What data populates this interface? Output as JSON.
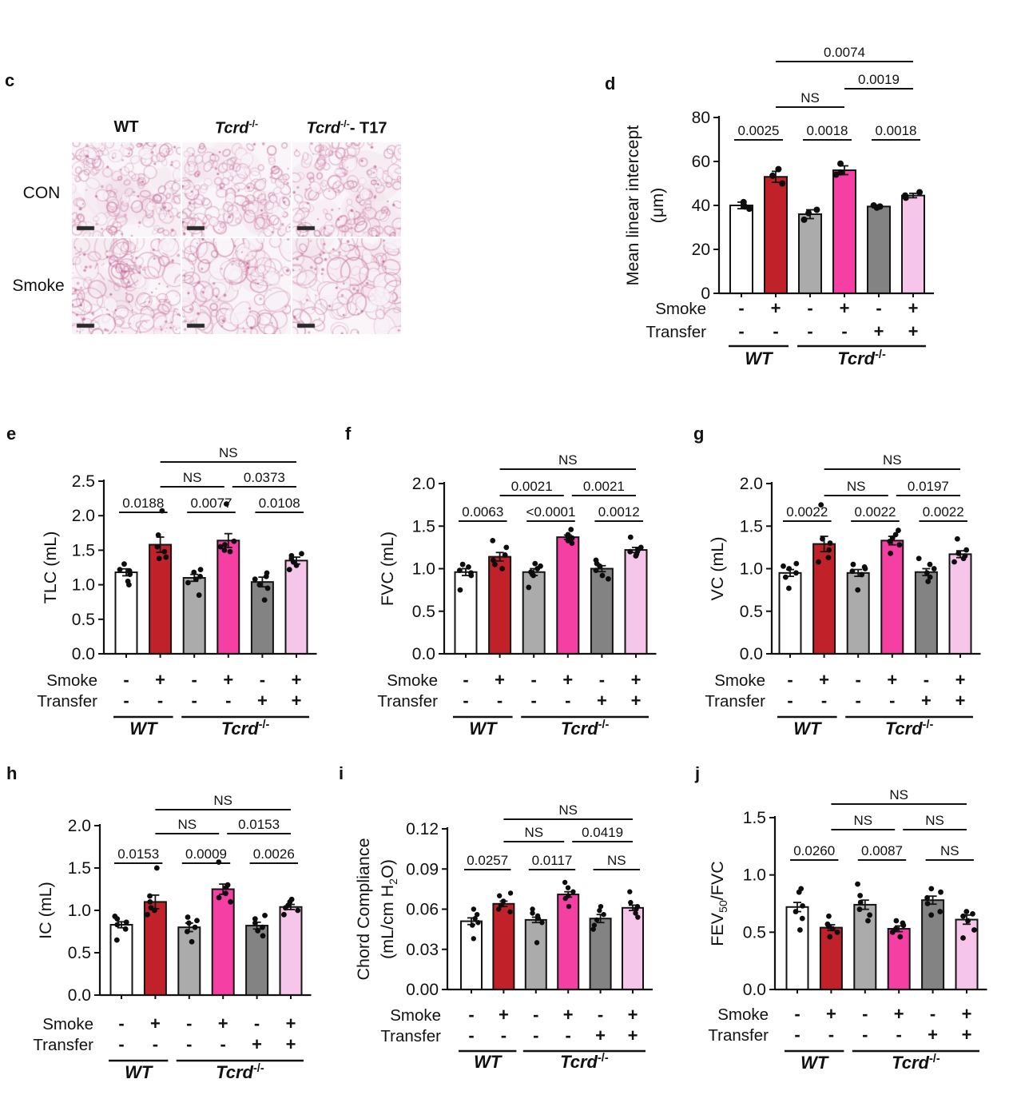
{
  "palette": {
    "white": "#ffffff",
    "red": "#c1222a",
    "lightgray": "#ababab",
    "pink": "#f63fa3",
    "darkgray": "#838383",
    "lightpink": "#f5c5ea",
    "axis": "#111111",
    "dot": "#0d0d0d",
    "tissue_pink": "#ce80a6"
  },
  "panel_c": {
    "letter": "c",
    "col_headers": [
      [
        "WT"
      ],
      [
        {
          "i": "Tcrd"
        },
        {
          "sup": "-/-"
        }
      ],
      [
        {
          "i": "Tcrd"
        },
        {
          "sup": "-/-"
        },
        "- T17"
      ]
    ],
    "row_labels": [
      "CON",
      "Smoke"
    ],
    "image_grid": {
      "rows": 2,
      "cols": 3,
      "scale_bar": "black bar, bottom-left of each image"
    }
  },
  "condition_rows": {
    "smoke_label": "Smoke",
    "transfer_label": "Transfer",
    "smoke": [
      "-",
      "+",
      "-",
      "+",
      "-",
      "+"
    ],
    "transfer": [
      "-",
      "-",
      "-",
      "-",
      "+",
      "+"
    ],
    "groups": [
      {
        "label": [
          {
            "bi": "WT"
          }
        ],
        "from": 0,
        "to": 1,
        "plain": "WT"
      },
      {
        "label": [
          {
            "bi": "Tcrd"
          },
          {
            "sup": "-/-"
          }
        ],
        "from": 2,
        "to": 5,
        "plain": "Tcrd-/-"
      }
    ]
  },
  "chart_data": [
    {
      "panel": "d",
      "type": "bar",
      "ylabel": "Mean linear intercept (μm)",
      "ylabel_lines": [
        [
          "Mean linear intercept"
        ],
        [
          "(μm)"
        ]
      ],
      "ylim": [
        0,
        80
      ],
      "yticks": [
        0,
        20,
        40,
        60,
        80
      ],
      "ytick_labels": [
        "0",
        "20",
        "40",
        "60",
        "80"
      ],
      "bar_colors": [
        "white",
        "red",
        "lightgray",
        "pink",
        "darkgray",
        "lightpink"
      ],
      "values": [
        40,
        53,
        36,
        56,
        39.5,
        44.5
      ],
      "errors": [
        1.5,
        2.5,
        2,
        2,
        0.6,
        1
      ],
      "points": [
        [
          38.5,
          39.5,
          41.5
        ],
        [
          50,
          53.5,
          56.5
        ],
        [
          33.5,
          36.5,
          38
        ],
        [
          54,
          55,
          59
        ],
        [
          39,
          39.5,
          40
        ],
        [
          43.5,
          44.5,
          46
        ]
      ],
      "significance": [
        {
          "from": 0,
          "to": 1,
          "label": "0.0025",
          "row": 0
        },
        {
          "from": 2,
          "to": 3,
          "label": "0.0018",
          "row": 0
        },
        {
          "from": 4,
          "to": 5,
          "label": "0.0018",
          "row": 0
        },
        {
          "from": 1,
          "to": 3,
          "label": "NS",
          "row": 1
        },
        {
          "from": 3,
          "to": 5,
          "label": "0.0019",
          "row": 2
        },
        {
          "from": 1,
          "to": 5,
          "label": "0.0074",
          "row": 3
        }
      ]
    },
    {
      "panel": "e",
      "type": "bar",
      "ylabel": "TLC (mL)",
      "ylabel_lines": [
        [
          "TLC (mL)"
        ]
      ],
      "ylim": [
        0,
        2.5
      ],
      "yticks": [
        0,
        0.5,
        1.0,
        1.5,
        2.0,
        2.5
      ],
      "ytick_labels": [
        "0.0",
        "0.5",
        "1.0",
        "1.5",
        "2.0",
        "2.5"
      ],
      "bar_colors": [
        "white",
        "red",
        "lightgray",
        "pink",
        "darkgray",
        "lightpink"
      ],
      "values": [
        1.18,
        1.58,
        1.1,
        1.64,
        1.04,
        1.35
      ],
      "errors": [
        0.05,
        0.11,
        0.05,
        0.1,
        0.07,
        0.05
      ],
      "points": [
        [
          1.0,
          1.05,
          1.15,
          1.2,
          1.22,
          1.3
        ],
        [
          1.38,
          1.4,
          1.48,
          1.55,
          1.72,
          2.07
        ],
        [
          0.85,
          1.03,
          1.08,
          1.12,
          1.18,
          1.22
        ],
        [
          1.48,
          1.5,
          1.55,
          1.58,
          1.63,
          2.17
        ],
        [
          0.78,
          0.95,
          1.0,
          1.08,
          1.12,
          1.17
        ],
        [
          1.22,
          1.28,
          1.33,
          1.38,
          1.42,
          1.45
        ]
      ],
      "significance": [
        {
          "from": 0,
          "to": 1,
          "label": "0.0188",
          "row": 0
        },
        {
          "from": 2,
          "to": 3,
          "label": "0.0077",
          "row": 0
        },
        {
          "from": 4,
          "to": 5,
          "label": "0.0108",
          "row": 0
        },
        {
          "from": 1,
          "to": 3,
          "label": "NS",
          "row": 1
        },
        {
          "from": 3,
          "to": 5,
          "label": "0.0373",
          "row": 1
        },
        {
          "from": 1,
          "to": 5,
          "label": "NS",
          "row": 3
        }
      ]
    },
    {
      "panel": "f",
      "type": "bar",
      "ylabel": "FVC (mL)",
      "ylabel_lines": [
        [
          "FVC (mL)"
        ]
      ],
      "ylim": [
        0,
        2.0
      ],
      "yticks": [
        0,
        0.5,
        1.0,
        1.5,
        2.0
      ],
      "ytick_labels": [
        "0.0",
        "0.5",
        "1.0",
        "1.5",
        "2.0"
      ],
      "bar_colors": [
        "white",
        "red",
        "lightgray",
        "pink",
        "darkgray",
        "lightpink"
      ],
      "values": [
        0.96,
        1.14,
        0.96,
        1.37,
        1.0,
        1.22
      ],
      "errors": [
        0.04,
        0.05,
        0.04,
        0.025,
        0.035,
        0.03
      ],
      "points": [
        [
          0.75,
          0.92,
          0.95,
          0.98,
          1.02,
          1.05
        ],
        [
          1.0,
          1.05,
          1.1,
          1.16,
          1.25,
          1.33
        ],
        [
          0.78,
          0.92,
          0.96,
          1.0,
          1.03,
          1.06
        ],
        [
          1.3,
          1.33,
          1.36,
          1.38,
          1.4,
          1.46
        ],
        [
          0.88,
          0.92,
          0.98,
          1.03,
          1.06,
          1.1
        ],
        [
          1.15,
          1.17,
          1.2,
          1.22,
          1.25,
          1.37
        ]
      ],
      "significance": [
        {
          "from": 0,
          "to": 1,
          "label": "0.0063",
          "row": 0
        },
        {
          "from": 2,
          "to": 3,
          "label": "<0.0001",
          "row": 0
        },
        {
          "from": 4,
          "to": 5,
          "label": "0.0012",
          "row": 0
        },
        {
          "from": 1,
          "to": 3,
          "label": "0.0021",
          "row": 1
        },
        {
          "from": 3,
          "to": 5,
          "label": "0.0021",
          "row": 1
        },
        {
          "from": 1,
          "to": 5,
          "label": "NS",
          "row": 3
        }
      ]
    },
    {
      "panel": "g",
      "type": "bar",
      "ylabel": "VC (mL)",
      "ylabel_lines": [
        [
          "VC (mL)"
        ]
      ],
      "ylim": [
        0,
        2.0
      ],
      "yticks": [
        0,
        0.5,
        1.0,
        1.5,
        2.0
      ],
      "ytick_labels": [
        "0.0",
        "0.5",
        "1.0",
        "1.5",
        "2.0"
      ],
      "bar_colors": [
        "white",
        "red",
        "lightgray",
        "pink",
        "darkgray",
        "lightpink"
      ],
      "values": [
        0.95,
        1.29,
        0.95,
        1.33,
        0.96,
        1.17
      ],
      "errors": [
        0.04,
        0.09,
        0.04,
        0.05,
        0.04,
        0.04
      ],
      "points": [
        [
          0.77,
          0.9,
          0.95,
          1.0,
          1.03,
          1.06
        ],
        [
          1.08,
          1.13,
          1.22,
          1.3,
          1.35,
          1.75
        ],
        [
          0.75,
          0.93,
          0.97,
          1.0,
          1.02,
          1.05
        ],
        [
          1.18,
          1.28,
          1.32,
          1.36,
          1.4,
          1.45
        ],
        [
          0.85,
          0.9,
          0.95,
          1.0,
          1.05,
          1.12
        ],
        [
          1.08,
          1.12,
          1.15,
          1.18,
          1.22,
          1.35
        ]
      ],
      "significance": [
        {
          "from": 0,
          "to": 1,
          "label": "0.0022",
          "row": 0
        },
        {
          "from": 2,
          "to": 3,
          "label": "0.0022",
          "row": 0
        },
        {
          "from": 4,
          "to": 5,
          "label": "0.0022",
          "row": 0
        },
        {
          "from": 1,
          "to": 3,
          "label": "NS",
          "row": 1
        },
        {
          "from": 3,
          "to": 5,
          "label": "0.0197",
          "row": 1
        },
        {
          "from": 1,
          "to": 5,
          "label": "NS",
          "row": 3
        }
      ]
    },
    {
      "panel": "h",
      "type": "bar",
      "ylabel": "IC (mL)",
      "ylabel_lines": [
        [
          "IC (mL)"
        ]
      ],
      "ylim": [
        0,
        2.0
      ],
      "yticks": [
        0,
        0.5,
        1.0,
        1.5,
        2.0
      ],
      "ytick_labels": [
        "0.0",
        "0.5",
        "1.0",
        "1.5",
        "2.0"
      ],
      "bar_colors": [
        "white",
        "red",
        "lightgray",
        "pink",
        "darkgray",
        "lightpink"
      ],
      "values": [
        0.83,
        1.1,
        0.8,
        1.25,
        0.82,
        1.04
      ],
      "errors": [
        0.035,
        0.08,
        0.05,
        0.06,
        0.04,
        0.03
      ],
      "points": [
        [
          0.65,
          0.78,
          0.83,
          0.86,
          0.9,
          0.93
        ],
        [
          0.95,
          1.0,
          1.03,
          1.1,
          1.17,
          1.5
        ],
        [
          0.63,
          0.75,
          0.8,
          0.85,
          0.88,
          0.92
        ],
        [
          1.1,
          1.15,
          1.2,
          1.27,
          1.3,
          1.57
        ],
        [
          0.7,
          0.76,
          0.8,
          0.85,
          0.9,
          0.94
        ],
        [
          0.95,
          1.0,
          1.03,
          1.06,
          1.1,
          1.13
        ]
      ],
      "significance": [
        {
          "from": 0,
          "to": 1,
          "label": "0.0153",
          "row": 0
        },
        {
          "from": 2,
          "to": 3,
          "label": "0.0009",
          "row": 0
        },
        {
          "from": 4,
          "to": 5,
          "label": "0.0026",
          "row": 0
        },
        {
          "from": 1,
          "to": 3,
          "label": "NS",
          "row": 1
        },
        {
          "from": 3,
          "to": 5,
          "label": "0.0153",
          "row": 1
        },
        {
          "from": 1,
          "to": 5,
          "label": "NS",
          "row": 3
        }
      ]
    },
    {
      "panel": "i",
      "type": "bar",
      "ylabel": "Chord Compliance (mL/cm H2O)",
      "ylabel_lines": [
        [
          "Chord Compliance"
        ],
        [
          "(mL/cm H",
          {
            "sub": "2"
          },
          "O)"
        ]
      ],
      "ylim": [
        0,
        0.12
      ],
      "yticks": [
        0,
        0.03,
        0.06,
        0.09,
        0.12
      ],
      "ytick_labels": [
        "0.00",
        "0.03",
        "0.06",
        "0.09",
        "0.12"
      ],
      "bar_colors": [
        "white",
        "red",
        "lightgray",
        "pink",
        "darkgray",
        "lightpink"
      ],
      "values": [
        0.051,
        0.064,
        0.052,
        0.071,
        0.053,
        0.061
      ],
      "errors": [
        0.0025,
        0.002,
        0.002,
        0.002,
        0.003,
        0.002
      ],
      "points": [
        [
          0.038,
          0.048,
          0.05,
          0.053,
          0.056,
          0.06
        ],
        [
          0.058,
          0.06,
          0.063,
          0.066,
          0.07,
          0.072
        ],
        [
          0.035,
          0.05,
          0.053,
          0.055,
          0.057,
          0.06
        ],
        [
          0.062,
          0.068,
          0.07,
          0.073,
          0.076,
          0.08
        ],
        [
          0.045,
          0.048,
          0.052,
          0.056,
          0.059,
          0.062
        ],
        [
          0.054,
          0.057,
          0.06,
          0.062,
          0.065,
          0.073
        ]
      ],
      "significance": [
        {
          "from": 0,
          "to": 1,
          "label": "0.0257",
          "row": 0
        },
        {
          "from": 2,
          "to": 3,
          "label": "0.0117",
          "row": 0
        },
        {
          "from": 4,
          "to": 5,
          "label": "NS",
          "row": 0
        },
        {
          "from": 1,
          "to": 3,
          "label": "NS",
          "row": 1
        },
        {
          "from": 3,
          "to": 5,
          "label": "0.0419",
          "row": 1
        },
        {
          "from": 1,
          "to": 5,
          "label": "NS",
          "row": 3
        }
      ]
    },
    {
      "panel": "j",
      "type": "bar",
      "ylabel": "FEV50/FVC",
      "ylabel_lines": [
        [
          "FEV",
          {
            "sub": "50"
          },
          "/FVC"
        ]
      ],
      "ylim": [
        0,
        1.5
      ],
      "yticks": [
        0,
        0.5,
        1.0,
        1.5
      ],
      "ytick_labels": [
        "0.0",
        "0.5",
        "1.0",
        "1.5"
      ],
      "bar_colors": [
        "white",
        "red",
        "lightgray",
        "pink",
        "darkgray",
        "lightpink"
      ],
      "values": [
        0.72,
        0.54,
        0.74,
        0.53,
        0.78,
        0.61
      ],
      "errors": [
        0.04,
        0.025,
        0.04,
        0.025,
        0.035,
        0.04
      ],
      "points": [
        [
          0.52,
          0.62,
          0.68,
          0.73,
          0.85,
          0.88
        ],
        [
          0.46,
          0.5,
          0.53,
          0.55,
          0.57,
          0.64
        ],
        [
          0.6,
          0.65,
          0.7,
          0.76,
          0.82,
          0.92
        ],
        [
          0.46,
          0.5,
          0.53,
          0.56,
          0.58,
          0.6
        ],
        [
          0.65,
          0.68,
          0.75,
          0.8,
          0.85,
          0.88
        ],
        [
          0.45,
          0.52,
          0.6,
          0.64,
          0.66,
          0.68
        ]
      ],
      "significance": [
        {
          "from": 0,
          "to": 1,
          "label": "0.0260",
          "row": 0
        },
        {
          "from": 2,
          "to": 3,
          "label": "0.0087",
          "row": 0
        },
        {
          "from": 4,
          "to": 5,
          "label": "NS",
          "row": 0
        },
        {
          "from": 1,
          "to": 3,
          "label": "NS",
          "row": 1
        },
        {
          "from": 3,
          "to": 5,
          "label": "NS",
          "row": 1
        },
        {
          "from": 1,
          "to": 5,
          "label": "NS",
          "row": 3
        }
      ]
    }
  ]
}
